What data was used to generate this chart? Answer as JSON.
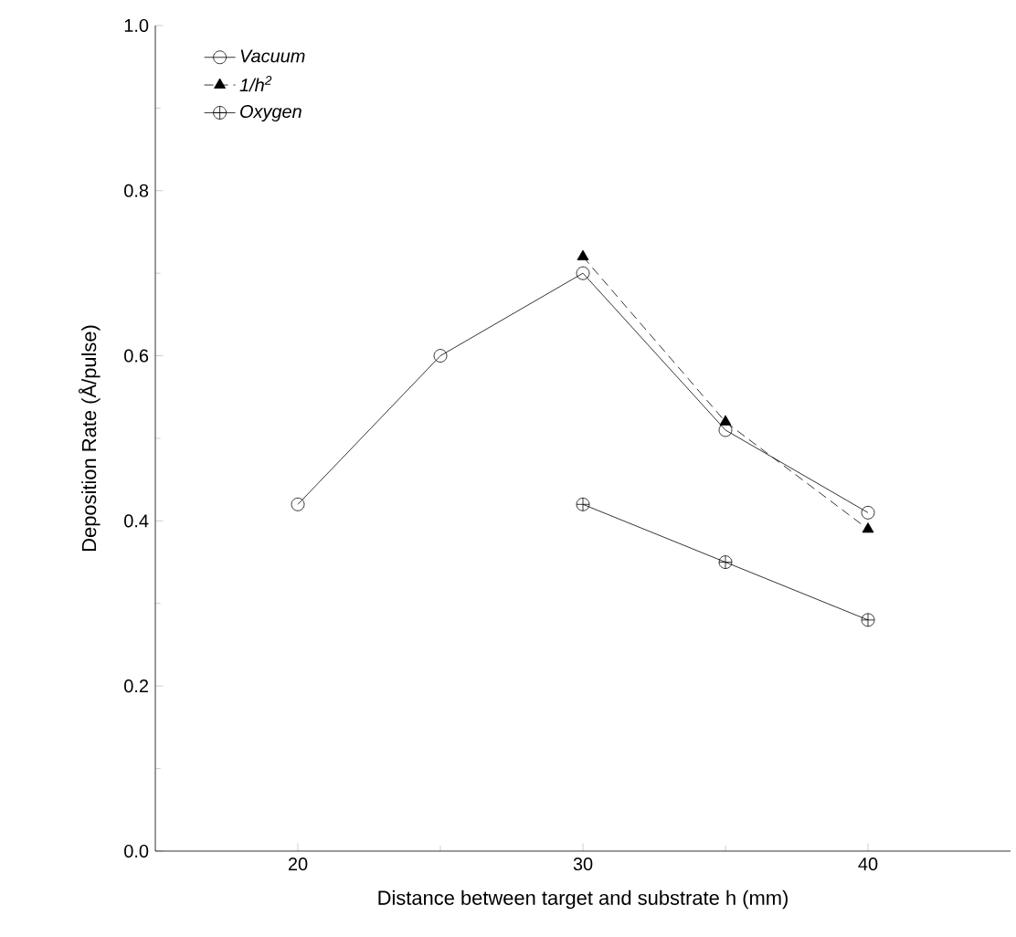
{
  "chart_data": {
    "type": "line",
    "xlabel": "Distance between target and substrate h (mm)",
    "ylabel": "Deposition Rate    (Å/pulse)",
    "x": [
      20,
      25,
      30,
      35,
      40
    ],
    "series": [
      {
        "name": "Vacuum",
        "color": "#000000",
        "marker": "circle",
        "line_style": "solid",
        "values": [
          0.42,
          0.6,
          0.7,
          0.51,
          0.41
        ]
      },
      {
        "name": "1/h$^{2}$",
        "color": "#000000",
        "marker": "triangle",
        "line_style": "dashed",
        "values": [
          null,
          null,
          0.72,
          0.52,
          0.39
        ]
      },
      {
        "name": "Oxygen",
        "color": "#000000",
        "marker": "cross",
        "line_style": "solid",
        "values": [
          null,
          null,
          0.42,
          0.35,
          0.28
        ]
      }
    ],
    "xlim": [
      15,
      45
    ],
    "ylim": [
      0,
      1.0
    ],
    "xticks": [
      20,
      30,
      40
    ],
    "yticks": [
      {
        "value": 0,
        "label": "0.0"
      },
      {
        "value": 0.2,
        "label": "0.2"
      },
      {
        "value": 0.4,
        "label": "0.4"
      },
      {
        "value": 0.6,
        "label": "0.6"
      },
      {
        "value": 0.8,
        "label": "0.8"
      },
      {
        "value": 1.0,
        "label": "1.0"
      }
    ],
    "grid": false,
    "legend": "top left"
  }
}
